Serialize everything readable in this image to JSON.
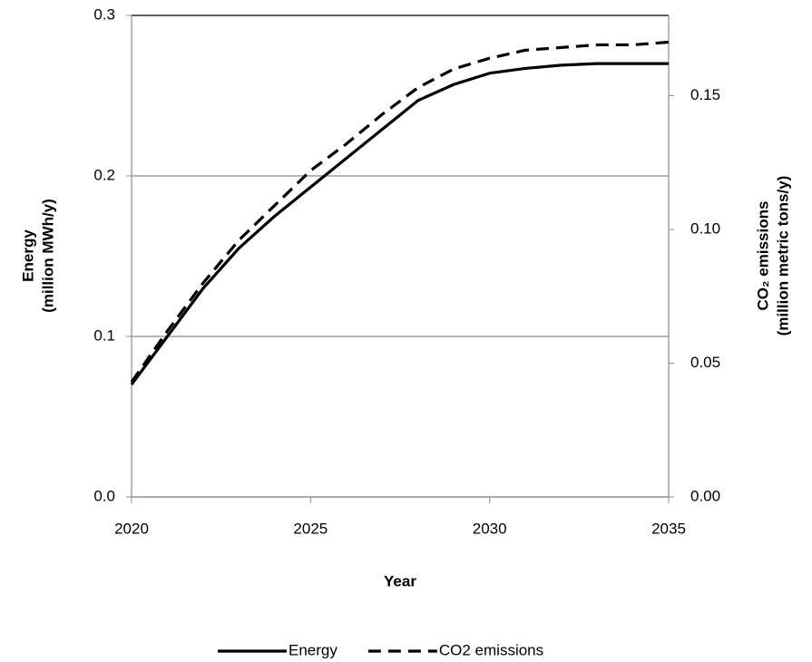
{
  "chart_data": {
    "type": "line",
    "x_label": "Year",
    "y_label": [
      "Energy",
      "(million MWh/y)"
    ],
    "y2_label": [
      "CO₂ emissions",
      "(million metric tons/y)"
    ],
    "x": [
      2020,
      2021,
      2022,
      2023,
      2024,
      2025,
      2026,
      2027,
      2028,
      2029,
      2030,
      2031,
      2032,
      2033,
      2034,
      2035
    ],
    "series": [
      {
        "name": "Energy",
        "color": "#000000",
        "dash": "solid",
        "values": [
          0.07,
          0.1,
          0.13,
          0.155,
          0.175,
          0.193,
          0.211,
          0.229,
          0.247,
          0.257,
          0.264,
          0.267,
          0.269,
          0.27,
          0.27,
          0.27
        ]
      },
      {
        "name": "CO2 emissions",
        "color": "#000000",
        "dash": "dashed",
        "axis": "y2",
        "values": [
          0.043,
          0.062,
          0.08,
          0.096,
          0.109,
          0.122,
          0.132,
          0.143,
          0.153,
          0.16,
          0.164,
          0.167,
          0.168,
          0.169,
          0.169,
          0.17
        ]
      }
    ],
    "xlim": [
      2020,
      2035
    ],
    "xticks": [
      2020,
      2025,
      2030,
      2035
    ],
    "ylim": [
      0,
      0.3
    ],
    "yticks": [
      {
        "value": 0,
        "label": "0.0"
      },
      0.1,
      0.2,
      0.3
    ],
    "y2lim": [
      0,
      0.18
    ],
    "y2ticks": [
      {
        "value": 0,
        "label": "0.00"
      },
      0.05,
      {
        "value": 0.1,
        "label": "0.10"
      },
      0.15
    ],
    "grid": true,
    "legend": "bottom"
  }
}
